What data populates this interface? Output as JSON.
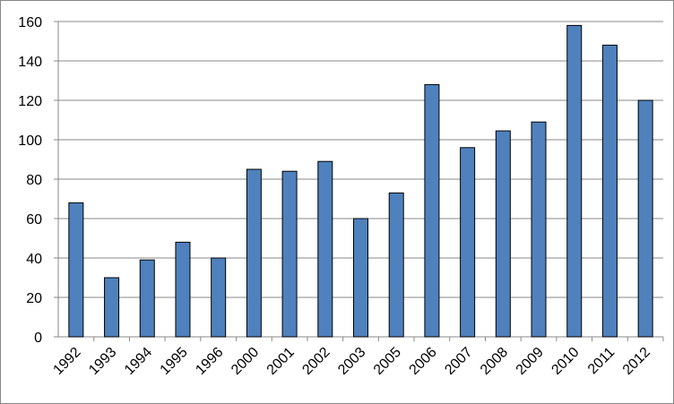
{
  "chart_data": {
    "type": "bar",
    "categories": [
      "1992",
      "1993",
      "1994",
      "1995",
      "1996",
      "2000",
      "2001",
      "2002",
      "2003",
      "2005",
      "2006",
      "2007",
      "2008",
      "2009",
      "2010",
      "2011",
      "2012"
    ],
    "values": [
      68,
      30,
      39,
      48,
      40,
      85,
      84,
      89,
      60,
      73,
      128,
      96,
      104.5,
      109,
      158,
      148,
      120
    ],
    "color": "#4f81bd",
    "ylim": [
      0,
      160
    ],
    "yticks": [
      0,
      20,
      40,
      60,
      80,
      100,
      120,
      140,
      160
    ],
    "grid": true
  }
}
